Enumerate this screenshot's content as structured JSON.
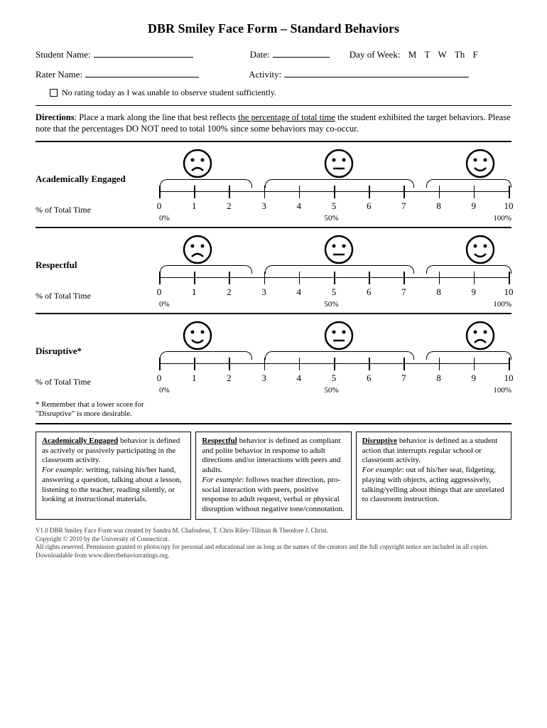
{
  "title": "DBR Smiley Face Form – Standard Behaviors",
  "fields": {
    "student_name": "Student Name:",
    "date": "Date:",
    "day_of_week": "Day of Week:",
    "days": [
      "M",
      "T",
      "W",
      "Th",
      "F"
    ],
    "rater_name": "Rater Name:",
    "activity": "Activity:",
    "no_rating": "No rating today as I was unable to observe student sufficiently."
  },
  "directions_label": "Directions",
  "directions_text1": ": Place a mark along the line that best reflects ",
  "directions_underline": "the percentage of total time",
  "directions_text2": " the student exhibited the target behaviors. Please note that the percentages DO NOT need to total 100% since some behaviors may co-occur.",
  "behaviors": [
    {
      "name": "Academically Engaged",
      "sub": "% of Total Time",
      "faces": [
        "sad",
        "neutral",
        "happy"
      ],
      "note": ""
    },
    {
      "name": "Respectful",
      "sub": "% of Total Time",
      "faces": [
        "sad",
        "neutral",
        "happy"
      ],
      "note": ""
    },
    {
      "name": "Disruptive*",
      "sub": "% of Total Time",
      "faces": [
        "happy",
        "neutral",
        "sad"
      ],
      "note": "* Remember that a lower score for \"Disruptive\" is more desirable."
    }
  ],
  "scale": {
    "ticks": [
      "0",
      "1",
      "2",
      "3",
      "4",
      "5",
      "6",
      "7",
      "8",
      "9",
      "10"
    ],
    "pct_left": "0%",
    "pct_mid": "50%",
    "pct_right": "100%"
  },
  "definitions": [
    {
      "term": "Academically Engaged",
      "body": " behavior is defined as actively or passively participating in the classroom activity. ",
      "example_label": "For example",
      "example": ": writing, raising his/her hand, answering a question, talking about a lesson, listening to the teacher, reading silently, or looking at instructional materials."
    },
    {
      "term": "Respectful",
      "body": " behavior is defined as compliant and polite behavior in response to adult directions and/or interactions with peers and adults. ",
      "example_label": "For example",
      "example": ": follows teacher direction, pro-social interaction with peers, positive response to adult request, verbal or physical disruption without negative tone/connotation."
    },
    {
      "term": "Disruptive",
      "body": " behavior is defined as a student action that interrupts regular school or classroom activity.",
      "example_label": "For example",
      "example": ": out of his/her seat, fidgeting, playing with objects, acting aggressively, talking/yelling about things that are unrelated to classroom instruction."
    }
  ],
  "footer": {
    "l1": "V1.0 DBR Smiley Face Form was created by Sandra M. Chafouleas, T. Chris Riley-Tillman & Theodore J. Christ.",
    "l2": "Copyright © 2010 by the University of Connecticut.",
    "l3": "All rights reserved. Permission granted to photocopy for personal and educational use as long as the names of the creators and the full copyright notice are included in all copies.",
    "l4": "Downloadable from www.directbehaviorratings.org."
  }
}
